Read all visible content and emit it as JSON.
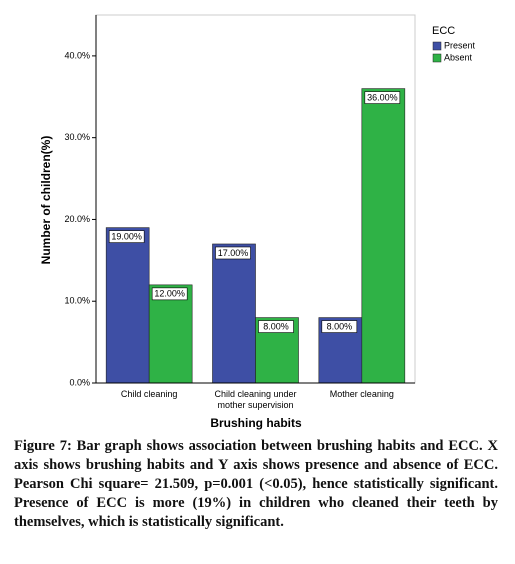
{
  "chart_data": {
    "type": "bar",
    "x_label": "Brushing habits",
    "y_label": "Number of children(%)",
    "legend_title": "ECC",
    "categories": [
      "Child cleaning",
      "Child cleaning under mother supervision",
      "Mother cleaning"
    ],
    "series": [
      {
        "name": "Present",
        "color": "#3e4fa5",
        "values": [
          19,
          17,
          8
        ],
        "value_labels": [
          "19.00%",
          "17.00%",
          "8.00%"
        ]
      },
      {
        "name": "Absent",
        "color": "#2fb246",
        "values": [
          12,
          8,
          36
        ],
        "value_labels": [
          "12.00%",
          "8.00%",
          "36.00%"
        ]
      }
    ],
    "ylim": [
      0,
      45
    ],
    "yticks": [
      {
        "value": 0,
        "label": "0.0%"
      },
      {
        "value": 10,
        "label": "10.0%"
      },
      {
        "value": 20,
        "label": "20.0%"
      },
      {
        "value": 30,
        "label": "30.0%"
      },
      {
        "value": 40,
        "label": "40.0%"
      }
    ],
    "legend_position": "right",
    "caption": "Figure 7: Bar graph shows association between brushing habits and ECC. X axis shows brushing habits and Y axis shows presence and absence of ECC. Pearson Chi square= 21.509, p=0.001 (<0.05), hence statistically significant. Presence of ECC is more (19%) in children who cleaned their teeth by themselves, which is statistically significant."
  }
}
